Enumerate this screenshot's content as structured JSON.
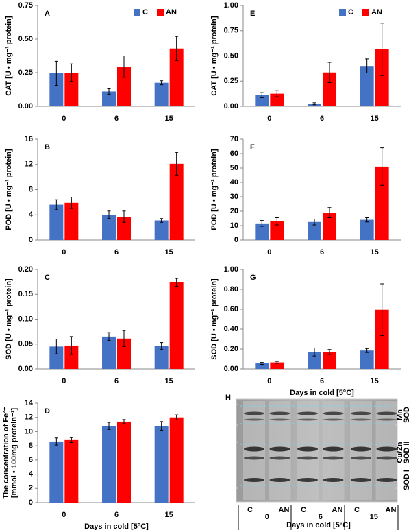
{
  "chart_data": [
    {
      "type": "bar",
      "panel": "A",
      "ylabel": [
        "CAT  [U • mg⁻¹ protein]"
      ],
      "categories": [
        "0",
        "6",
        "15"
      ],
      "ylim": [
        0,
        0.75
      ],
      "yticks": [
        {
          "value": 0,
          "label": "0.00"
        },
        {
          "value": 0.25,
          "label": "0.25"
        },
        {
          "value": 0.5,
          "label": "0.50"
        },
        {
          "value": 0.75,
          "label": "0.75"
        }
      ],
      "legend": "top-right",
      "series": [
        {
          "name": "C",
          "color": "#4472c4",
          "values": [
            0.245,
            0.11,
            0.175
          ],
          "errors": [
            0.09,
            0.02,
            0.015
          ]
        },
        {
          "name": "AN",
          "color": "#ff0000",
          "values": [
            0.25,
            0.295,
            0.43
          ],
          "errors": [
            0.065,
            0.08,
            0.09
          ]
        }
      ]
    },
    {
      "type": "bar",
      "panel": "B",
      "ylabel": [
        "POD  [U • mg⁻¹ protein]"
      ],
      "categories": [
        "0",
        "6",
        "15"
      ],
      "ylim": [
        0,
        16
      ],
      "yticks": [
        0,
        4,
        8,
        12,
        16
      ],
      "series": [
        {
          "name": "C",
          "color": "#4472c4",
          "values": [
            5.6,
            4.0,
            3.1
          ],
          "errors": [
            0.8,
            0.6,
            0.3
          ]
        },
        {
          "name": "AN",
          "color": "#ff0000",
          "values": [
            5.9,
            3.7,
            12.1
          ],
          "errors": [
            0.9,
            0.9,
            1.8
          ]
        }
      ]
    },
    {
      "type": "bar",
      "panel": "C",
      "ylabel": [
        "SOD  [U • mg⁻¹ protein]"
      ],
      "categories": [
        "0",
        "6",
        "15"
      ],
      "ylim": [
        0,
        0.2
      ],
      "yticks": [
        {
          "value": 0,
          "label": "0.00"
        },
        {
          "value": 0.05,
          "label": "0.05"
        },
        {
          "value": 0.1,
          "label": "0.10"
        },
        {
          "value": 0.15,
          "label": "0.15"
        },
        {
          "value": 0.2,
          "label": "0.20"
        }
      ],
      "series": [
        {
          "name": "C",
          "color": "#4472c4",
          "values": [
            0.045,
            0.065,
            0.046
          ],
          "errors": [
            0.015,
            0.008,
            0.007
          ]
        },
        {
          "name": "AN",
          "color": "#ff0000",
          "values": [
            0.047,
            0.061,
            0.174
          ],
          "errors": [
            0.018,
            0.016,
            0.008
          ]
        }
      ]
    },
    {
      "type": "bar",
      "panel": "D",
      "ylabel": [
        "The concentration of Fe²⁺",
        "[mmol • 100mg protein⁻¹]"
      ],
      "categories": [
        "0",
        "6",
        "15"
      ],
      "xlabel": "Days in cold [5°C]",
      "ylim": [
        0,
        14
      ],
      "yticks": [
        0,
        2,
        4,
        6,
        8,
        10,
        12,
        14
      ],
      "series": [
        {
          "name": "C",
          "color": "#4472c4",
          "values": [
            8.6,
            10.8,
            10.8
          ],
          "errors": [
            0.5,
            0.5,
            0.6
          ]
        },
        {
          "name": "AN",
          "color": "#ff0000",
          "values": [
            8.8,
            11.4,
            12.0
          ],
          "errors": [
            0.35,
            0.3,
            0.35
          ]
        }
      ]
    },
    {
      "type": "bar",
      "panel": "E",
      "ylabel": [
        "CAT  [U • mg⁻¹ protein]"
      ],
      "categories": [
        "0",
        "6",
        "15"
      ],
      "ylim": [
        0,
        1
      ],
      "yticks": [
        {
          "value": 0,
          "label": "0.00"
        },
        {
          "value": 0.25,
          "label": "0.25"
        },
        {
          "value": 0.5,
          "label": "0.50"
        },
        {
          "value": 0.75,
          "label": "0.75"
        },
        {
          "value": 1,
          "label": "1.00"
        }
      ],
      "legend": "top-right",
      "series": [
        {
          "name": "C",
          "color": "#4472c4",
          "values": [
            0.11,
            0.025,
            0.4
          ],
          "errors": [
            0.025,
            0.01,
            0.07
          ]
        },
        {
          "name": "AN",
          "color": "#ff0000",
          "values": [
            0.125,
            0.335,
            0.565
          ],
          "errors": [
            0.03,
            0.1,
            0.26
          ]
        }
      ]
    },
    {
      "type": "bar",
      "panel": "F",
      "ylabel": [
        "POD  [U • mg⁻¹ protein]"
      ],
      "categories": [
        "0",
        "6",
        "15"
      ],
      "ylim": [
        0,
        70
      ],
      "yticks": [
        0,
        10,
        20,
        30,
        40,
        50,
        60,
        70
      ],
      "series": [
        {
          "name": "C",
          "color": "#4472c4",
          "values": [
            11.5,
            12.5,
            14
          ],
          "errors": [
            2,
            2,
            1.5
          ]
        },
        {
          "name": "AN",
          "color": "#ff0000",
          "values": [
            13,
            19,
            51
          ],
          "errors": [
            2.5,
            3.5,
            13
          ]
        }
      ]
    },
    {
      "type": "bar",
      "panel": "G",
      "ylabel": [
        "SOD  [U • mg⁻¹ protein]"
      ],
      "categories": [
        "0",
        "6",
        "15"
      ],
      "xlabel": "Days in cold [5°C]",
      "ylim": [
        0,
        1
      ],
      "yticks": [
        {
          "value": 0,
          "label": "0.00"
        },
        {
          "value": 0.2,
          "label": "0.20"
        },
        {
          "value": 0.4,
          "label": "0.40"
        },
        {
          "value": 0.6,
          "label": "0.60"
        },
        {
          "value": 0.8,
          "label": "0.80"
        },
        {
          "value": 1,
          "label": "1.00"
        }
      ],
      "series": [
        {
          "name": "C",
          "color": "#4472c4",
          "values": [
            0.055,
            0.17,
            0.185
          ],
          "errors": [
            0.01,
            0.04,
            0.02
          ]
        },
        {
          "name": "AN",
          "color": "#ff0000",
          "values": [
            0.065,
            0.17,
            0.595
          ],
          "errors": [
            0.01,
            0.025,
            0.26
          ]
        }
      ]
    }
  ],
  "gel": {
    "panel": "H",
    "lanes": [
      "C",
      "AN",
      "C",
      "AN",
      "C",
      "AN"
    ],
    "days": [
      "0",
      "6",
      "15"
    ],
    "xlabel": "Days in cold [5°C]",
    "bands": [
      "Mn",
      "SOD",
      "Cu/Zn",
      "SOD II",
      "SOD I"
    ]
  }
}
